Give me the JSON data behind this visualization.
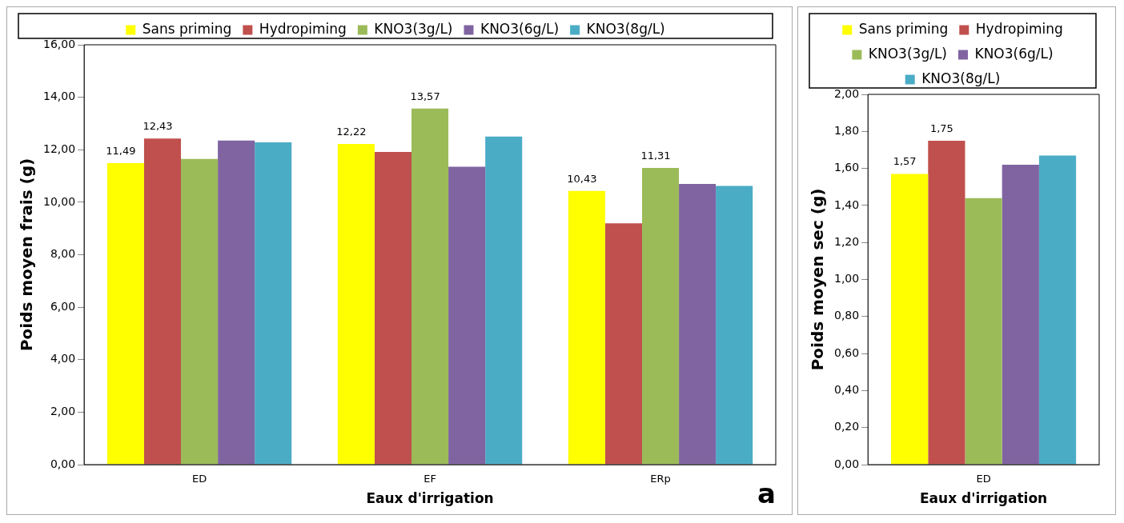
{
  "chart_data": [
    {
      "type": "bar",
      "categories": [
        "ED",
        "EF",
        "ERp"
      ],
      "xlabel": "Eaux d'irrigation",
      "ylabel": "Poids moyen frais (g)",
      "ylim": [
        0,
        16
      ],
      "yticks": [
        {
          "value": 0,
          "label": "0,00"
        },
        {
          "value": 2,
          "label": "2,00"
        },
        {
          "value": 4,
          "label": "4,00"
        },
        {
          "value": 6,
          "label": "6,00"
        },
        {
          "value": 8,
          "label": "8,00"
        },
        {
          "value": 10,
          "label": "10,00"
        },
        {
          "value": 12,
          "label": "12,00"
        },
        {
          "value": 14,
          "label": "14,00"
        },
        {
          "value": 16,
          "label": "16,00"
        }
      ],
      "grid": false,
      "legend": "top",
      "annotations": [
        "a"
      ],
      "series": [
        {
          "name": "Sans priming",
          "color": "#ffff00",
          "values": [
            11.49,
            12.22,
            10.43
          ],
          "value_labels": [
            "11,49",
            "12,22",
            "10,43"
          ]
        },
        {
          "name": "Hydropiming",
          "color": "#c0504d",
          "values": [
            12.43,
            11.92,
            9.2
          ],
          "value_labels": [
            "12,43",
            null,
            null
          ]
        },
        {
          "name": "KNO3(3g/L)",
          "color": "#9bbb59",
          "values": [
            11.65,
            13.57,
            11.31
          ],
          "value_labels": [
            null,
            "13,57",
            "11,31"
          ]
        },
        {
          "name": "KNO3(6g/L)",
          "color": "#8064a2",
          "values": [
            12.35,
            11.35,
            10.7
          ],
          "value_labels": [
            null,
            null,
            null
          ]
        },
        {
          "name": "KNO3(8g/L)",
          "color": "#4bacc6",
          "values": [
            12.28,
            12.5,
            10.62
          ],
          "value_labels": [
            null,
            null,
            null
          ]
        }
      ]
    },
    {
      "type": "bar",
      "categories": [
        "ED"
      ],
      "xlabel": "Eaux d'irrigation",
      "ylabel": "Poids moyen sec (g)",
      "ylim": [
        0,
        2
      ],
      "yticks": [
        {
          "value": 0,
          "label": "0,00"
        },
        {
          "value": 0.2,
          "label": "0,20"
        },
        {
          "value": 0.4,
          "label": "0,40"
        },
        {
          "value": 0.6,
          "label": "0,60"
        },
        {
          "value": 0.8,
          "label": "0,80"
        },
        {
          "value": 1,
          "label": "1,00"
        },
        {
          "value": 1.2,
          "label": "1,20"
        },
        {
          "value": 1.4,
          "label": "1,40"
        },
        {
          "value": 1.6,
          "label": "1,60"
        },
        {
          "value": 1.8,
          "label": "1,80"
        },
        {
          "value": 2,
          "label": "2,00"
        }
      ],
      "grid": false,
      "legend": "top",
      "series": [
        {
          "name": "Sans priming",
          "color": "#ffff00",
          "values": [
            1.57
          ],
          "value_labels": [
            "1,57"
          ]
        },
        {
          "name": "Hydropiming",
          "color": "#c0504d",
          "values": [
            1.75
          ],
          "value_labels": [
            "1,75"
          ]
        },
        {
          "name": "KNO3(3g/L)",
          "color": "#9bbb59",
          "values": [
            1.44
          ],
          "value_labels": [
            null
          ]
        },
        {
          "name": "KNO3(6g/L)",
          "color": "#8064a2",
          "values": [
            1.62
          ],
          "value_labels": [
            null
          ]
        },
        {
          "name": "KNO3(8g/L)",
          "color": "#4bacc6",
          "values": [
            1.67
          ],
          "value_labels": [
            null
          ]
        }
      ]
    }
  ]
}
